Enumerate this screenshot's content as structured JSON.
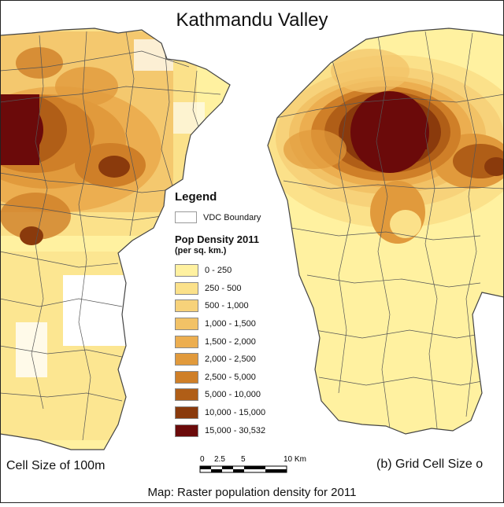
{
  "title": "Kathmandu Valley",
  "legend": {
    "heading": "Legend",
    "vdc_label": "VDC Boundary",
    "pop_title": "Pop Density 2011",
    "pop_unit": "(per sq. km.)",
    "classes": [
      {
        "label": "0 - 250",
        "color": "#fff1a0"
      },
      {
        "label": "250 - 500",
        "color": "#fbe18a"
      },
      {
        "label": "500 - 1,000",
        "color": "#f7d27a"
      },
      {
        "label": "1,000 - 1,500",
        "color": "#f2c266"
      },
      {
        "label": "1,500 - 2,000",
        "color": "#ecae50"
      },
      {
        "label": "2,000 - 2,500",
        "color": "#e19a3c"
      },
      {
        "label": "2,500 - 5,000",
        "color": "#cf7f28"
      },
      {
        "label": "5,000 - 10,000",
        "color": "#b05e17"
      },
      {
        "label": "10,000 - 15,000",
        "color": "#8a3a0c"
      },
      {
        "label": "15,000 - 30,532",
        "color": "#6b0a0a"
      }
    ]
  },
  "captions": {
    "left": "Cell Size of 100m",
    "right": "(b) Grid Cell Size o"
  },
  "scale": {
    "ticks": [
      "0",
      "2.5",
      "5",
      "10 Km"
    ]
  },
  "footer": "Map: Raster population density for 2011"
}
